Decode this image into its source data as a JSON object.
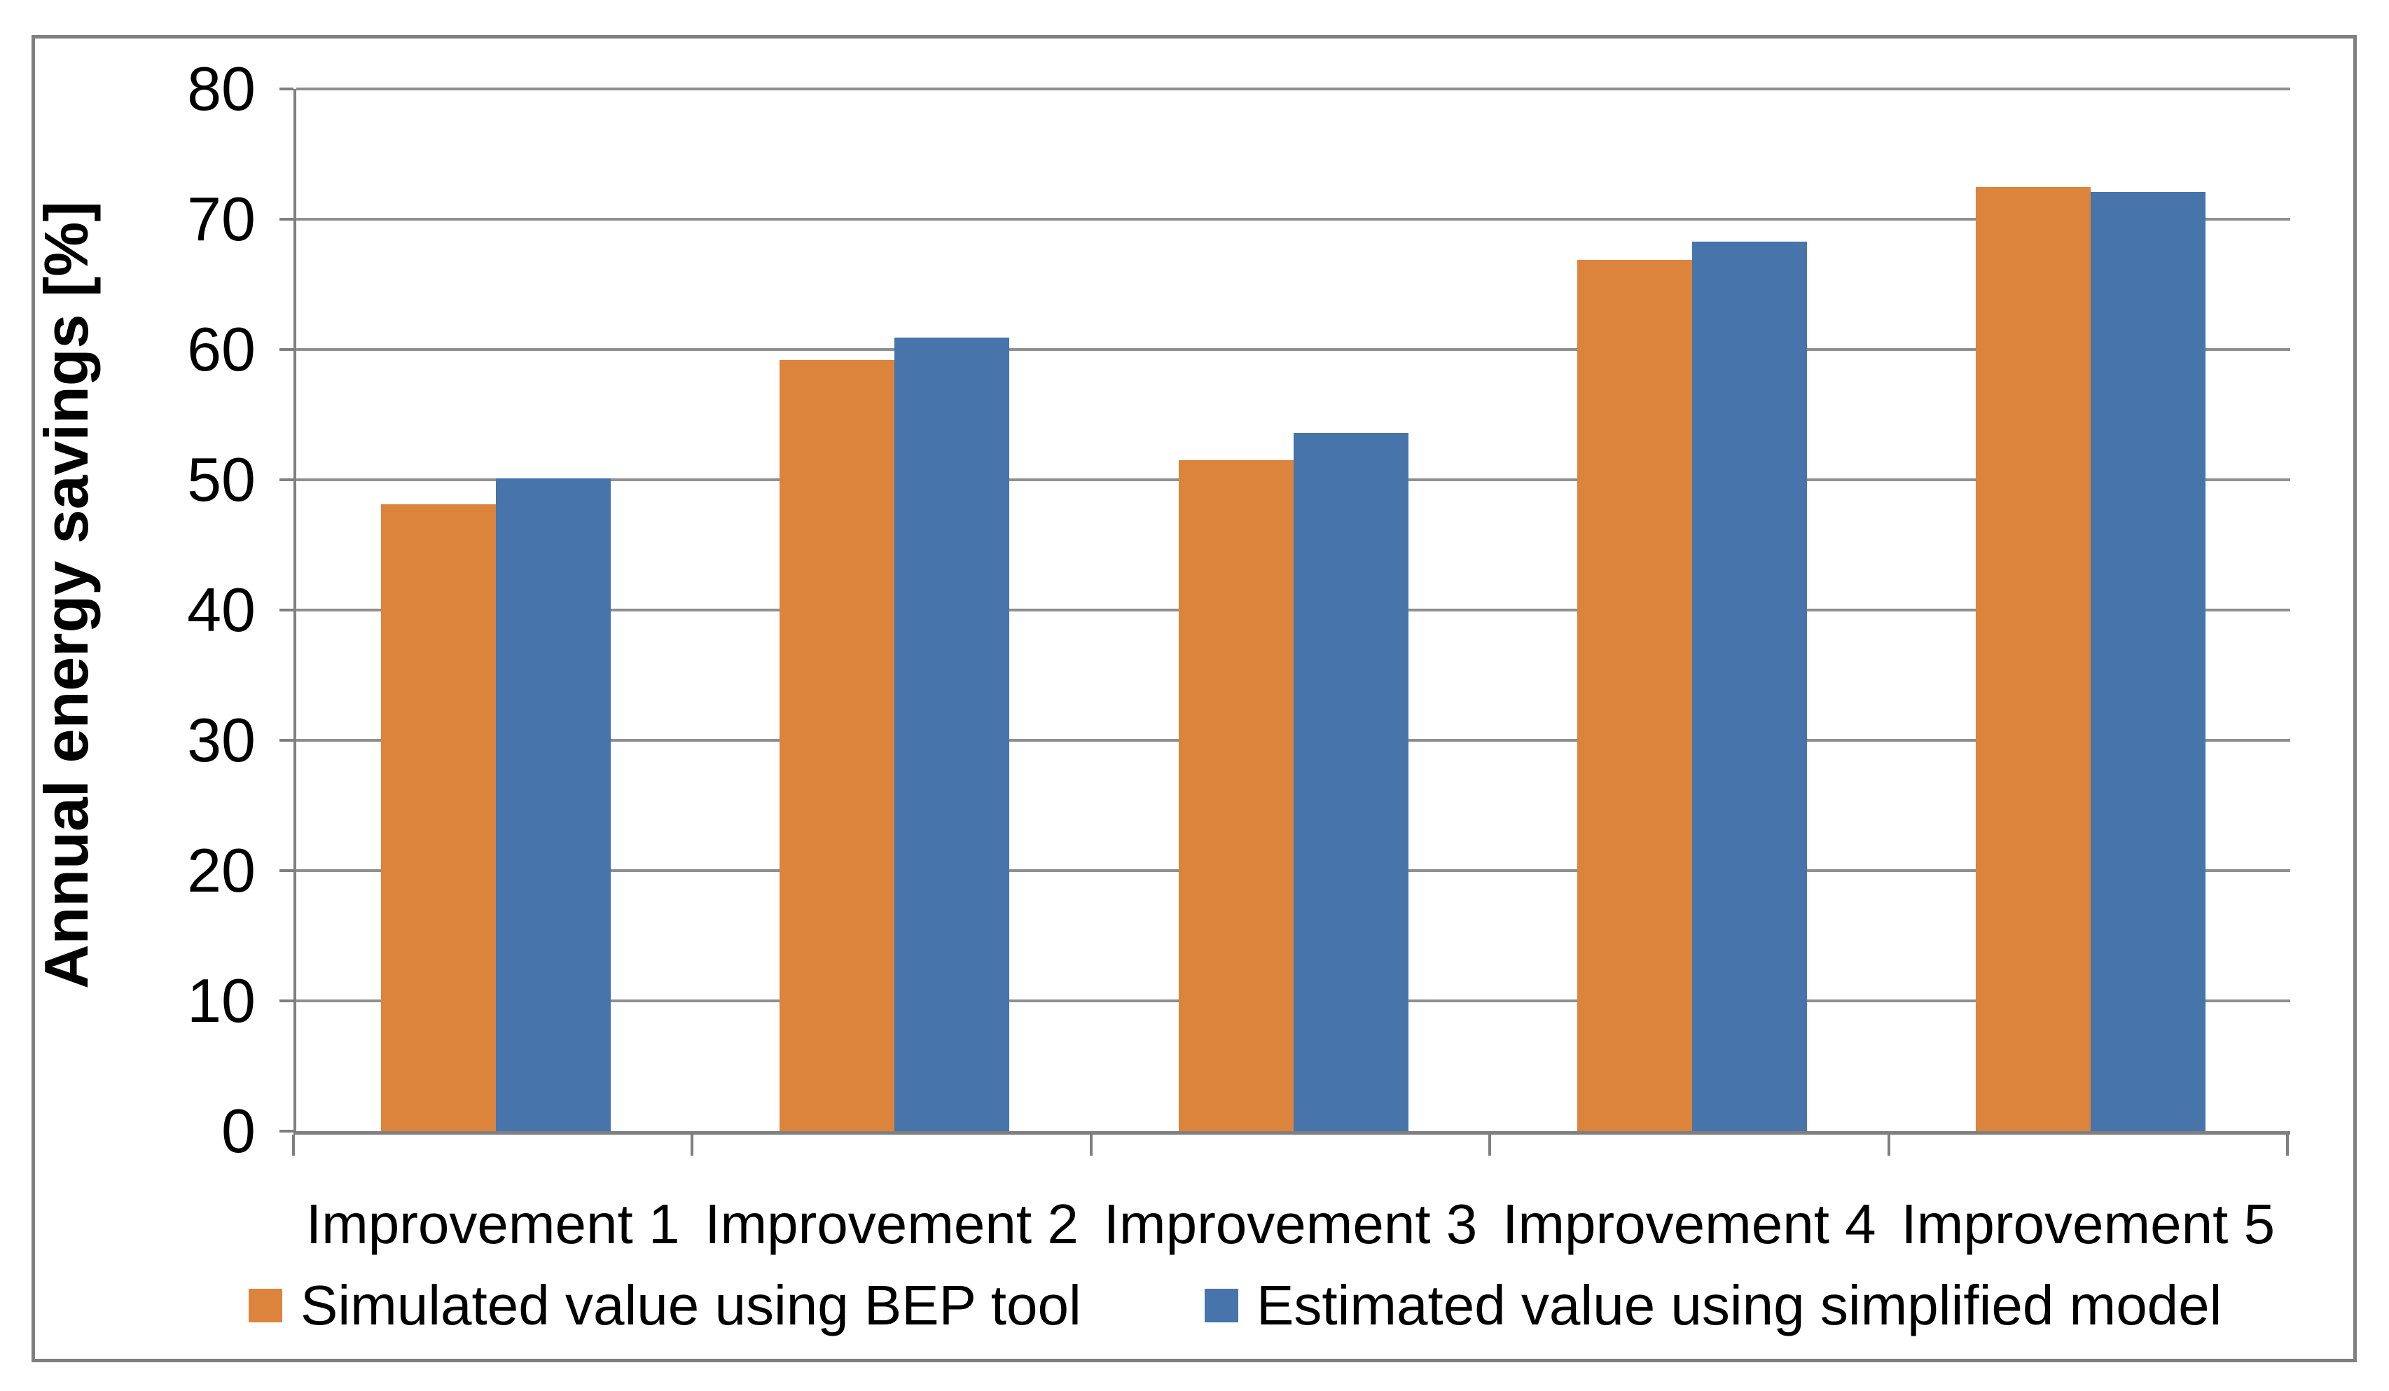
{
  "chart_data": {
    "type": "bar",
    "title": "",
    "categories": [
      "Improvement 1",
      "Improvement 2",
      "Improvement 3",
      "Improvement 4",
      "Improvement 5"
    ],
    "series": [
      {
        "name": "Simulated value using BEP tool",
        "color": "#DC833C",
        "values": [
          48.1,
          59.2,
          51.5,
          66.9,
          72.5
        ]
      },
      {
        "name": "Estimated value using simplified model",
        "color": "#4674AB",
        "values": [
          50.1,
          60.9,
          53.6,
          68.3,
          72.1
        ]
      }
    ],
    "xlabel": "",
    "ylabel": "Annual energy savings [%]",
    "ylim": [
      0,
      80
    ],
    "ytick_step": 10,
    "yticks": [
      0,
      10,
      20,
      30,
      40,
      50,
      60,
      70,
      80
    ],
    "grid": true,
    "legend_position": "bottom",
    "colors": {
      "gridline": "#8f8f8f",
      "axis": "#7f7f7f",
      "text": "#000000",
      "background": "#ffffff"
    }
  }
}
